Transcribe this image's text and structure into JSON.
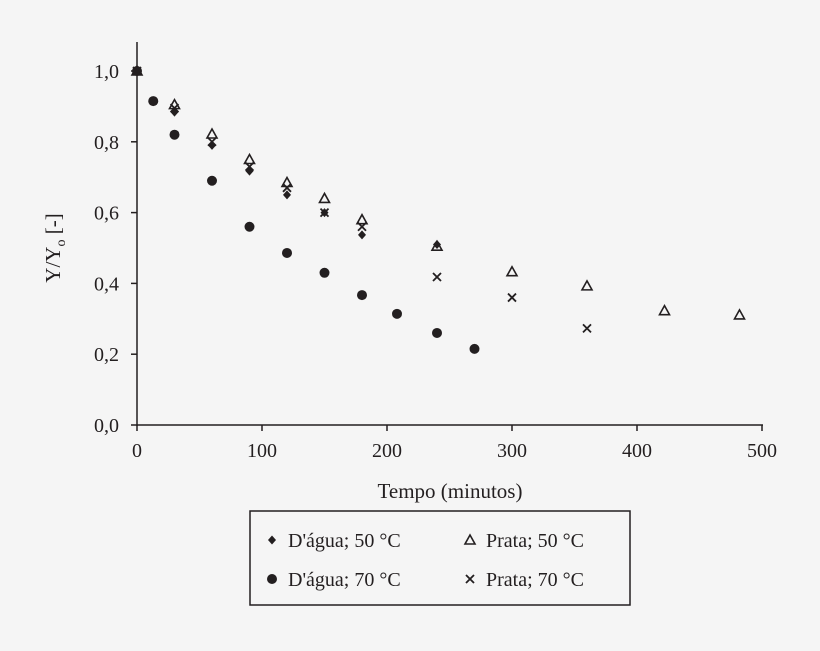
{
  "chart_data": {
    "type": "scatter",
    "title": "",
    "xlabel": "Tempo (minutos)",
    "ylabel": "Y/Y",
    "ylabel_sub": "o",
    "ylabel_unit": "[-]",
    "xlim": [
      0,
      500
    ],
    "ylim": [
      0,
      1.0
    ],
    "xticks": [
      "0",
      "100",
      "200",
      "300",
      "400",
      "500"
    ],
    "yticks": [
      "0,0",
      "0,2",
      "0,4",
      "0,6",
      "0,8",
      "1,0"
    ],
    "grid": false,
    "legend_position": "bottom",
    "color": "#231f20",
    "series": [
      {
        "name": "D'água; 50 °C",
        "marker": "diamond",
        "x": [
          0,
          30,
          60,
          90,
          120,
          150,
          180,
          240
        ],
        "y": [
          1.0,
          0.884,
          0.79,
          0.717,
          0.65,
          0.6,
          0.537,
          0.51
        ]
      },
      {
        "name": "Prata; 50 °C",
        "marker": "triangle-open",
        "x": [
          0,
          30,
          60,
          90,
          120,
          150,
          180,
          240,
          300,
          360,
          422,
          482
        ],
        "y": [
          1.0,
          0.905,
          0.822,
          0.75,
          0.685,
          0.64,
          0.58,
          0.505,
          0.433,
          0.393,
          0.323,
          0.311
        ]
      },
      {
        "name": "D'água; 70 °C",
        "marker": "circle",
        "x": [
          0,
          13,
          30,
          60,
          90,
          120,
          150,
          180,
          208,
          240,
          270
        ],
        "y": [
          1.0,
          0.915,
          0.82,
          0.69,
          0.56,
          0.486,
          0.43,
          0.367,
          0.314,
          0.26,
          0.215
        ]
      },
      {
        "name": "Prata; 70 °C",
        "marker": "x",
        "x": [
          0,
          30,
          60,
          90,
          120,
          150,
          180,
          240,
          300,
          360
        ],
        "y": [
          1.0,
          0.895,
          0.8,
          0.73,
          0.67,
          0.6,
          0.56,
          0.418,
          0.36,
          0.273
        ]
      }
    ]
  }
}
